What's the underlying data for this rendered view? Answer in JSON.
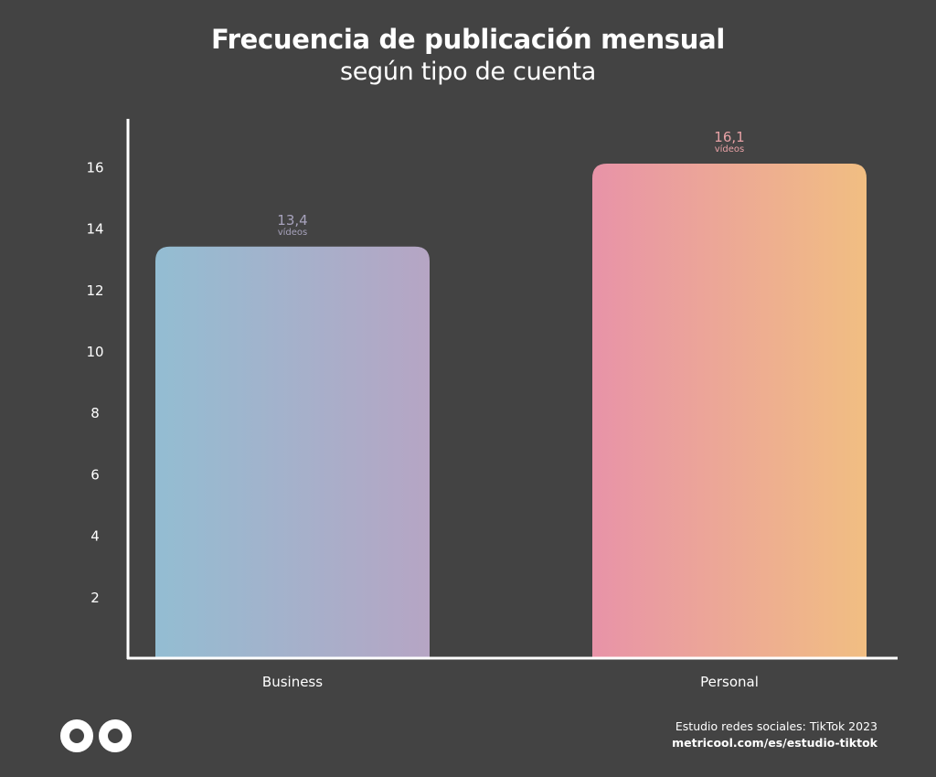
{
  "chart_data": {
    "type": "bar",
    "title": "Frecuencia de publicación mensual",
    "subtitle": "según tipo de cuenta",
    "categories": [
      "Business",
      "Personal"
    ],
    "values": [
      13.4,
      16.1
    ],
    "data_labels": [
      "13,4",
      "16,1"
    ],
    "data_label_unit": "vídeos",
    "yticks": [
      "2",
      "4",
      "6",
      "8",
      "10",
      "12",
      "14",
      "16"
    ],
    "ytick_values": [
      2,
      4,
      6,
      8,
      10,
      12,
      14,
      16
    ],
    "ylim": [
      0,
      17.5
    ],
    "xlabel": "",
    "ylabel": "",
    "grid": false,
    "colors": {
      "Business": [
        "#93bdd2",
        "#b6a5c4"
      ],
      "Personal": [
        "#e893a8",
        "#f1be82"
      ],
      "Business_label": "#a7a2bc",
      "Personal_label": "#e8a2a6",
      "axis": "#ffffff",
      "background": "#434343"
    }
  },
  "footer": {
    "source": "Estudio redes sociales: TikTok 2023",
    "url": "metricool.com/es/estudio-tiktok"
  },
  "logo": {
    "icon": "metricool-infinity-logo-icon"
  }
}
